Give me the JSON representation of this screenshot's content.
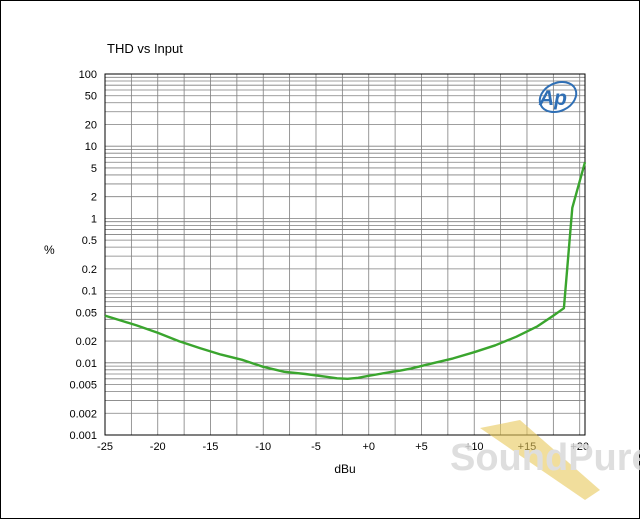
{
  "colors": {
    "series": "#3aa52e",
    "grid": "#7f7f7f",
    "logo": "#2f6fb5",
    "watermark_band": "#e8c95a"
  },
  "logo": {
    "text": "Ap",
    "icon": "ap-logo-icon"
  },
  "watermark": {
    "text": "SoundPure",
    "icon": "soundpure-watermark-icon"
  },
  "chart_data": {
    "type": "line",
    "title": "THD vs Input",
    "xlabel": "dBu",
    "ylabel": "%",
    "xlim": [
      -25,
      20.5
    ],
    "ylim": [
      0.001,
      100
    ],
    "yscale": "log",
    "grid": true,
    "x_ticks": [
      -25,
      -20,
      -15,
      -10,
      -5,
      0,
      5,
      10,
      15,
      20
    ],
    "x_tick_labels": [
      "-25",
      "-20",
      "-15",
      "-10",
      "-5",
      "+0",
      "+5",
      "+10",
      "+15",
      "+20"
    ],
    "y_ticks": [
      100,
      50,
      20,
      10,
      5,
      2,
      1,
      0.5,
      0.2,
      0.1,
      0.05,
      0.02,
      0.01,
      0.005,
      0.002,
      0.001
    ],
    "y_tick_labels": [
      "100",
      "50",
      "20",
      "10",
      "5",
      "2",
      "1",
      "0.5",
      "0.2",
      "0.1",
      "0.05",
      "0.02",
      "0.01",
      "0.005",
      "0.002",
      "0.001"
    ],
    "series": [
      {
        "x": [
          -25,
          -22,
          -20,
          -18,
          -16,
          -14,
          -12,
          -10,
          -8,
          -6,
          -4,
          -3,
          -2,
          -1,
          0,
          1,
          2,
          3,
          4,
          6,
          8,
          10,
          12,
          14,
          16,
          17.5,
          18.5,
          19.3,
          20.5
        ],
        "y": [
          0.045,
          0.033,
          0.026,
          0.02,
          0.016,
          0.013,
          0.011,
          0.0088,
          0.0075,
          0.007,
          0.0064,
          0.0061,
          0.006,
          0.0062,
          0.0066,
          0.007,
          0.0074,
          0.0078,
          0.0083,
          0.0098,
          0.0115,
          0.014,
          0.0175,
          0.023,
          0.032,
          0.045,
          0.057,
          1.4,
          6
        ]
      }
    ]
  }
}
